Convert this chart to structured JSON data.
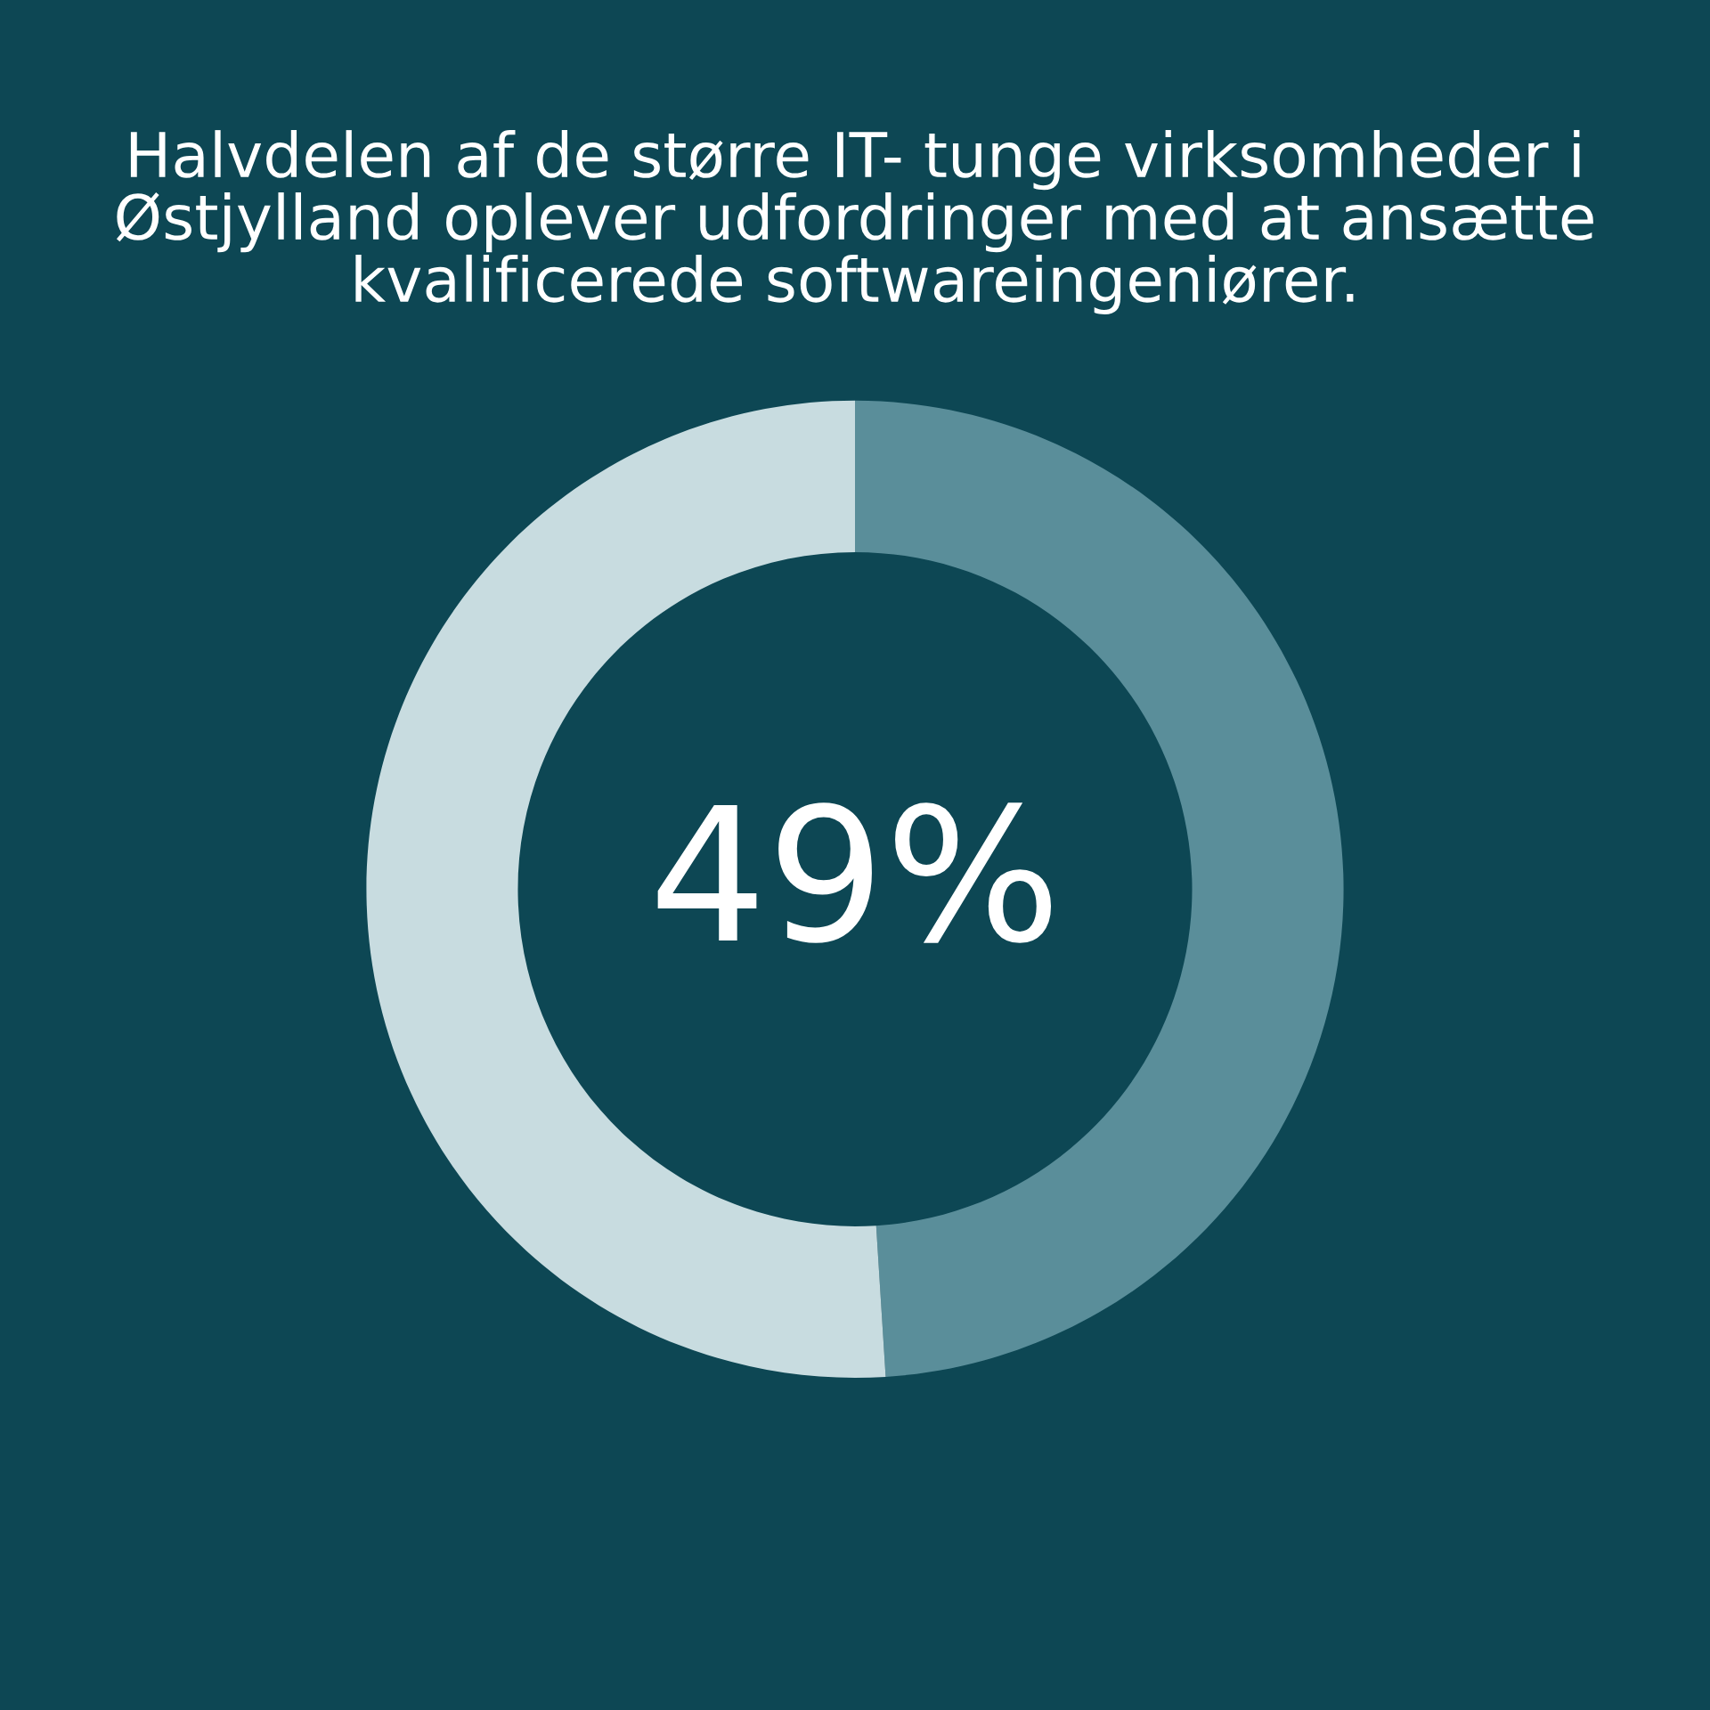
{
  "chart_data": {
    "type": "donut",
    "title": "Halvdelen af de større IT- tunge virksomheder i Østjylland oplever udfordringer med at ansætte kvalificerede softwareingeniører.",
    "categories": [
      null,
      null
    ],
    "values": [
      49,
      51
    ],
    "colors": [
      "#5a8e9a",
      "#c8dce0"
    ],
    "value_labels": [
      "49%",
      null
    ]
  }
}
